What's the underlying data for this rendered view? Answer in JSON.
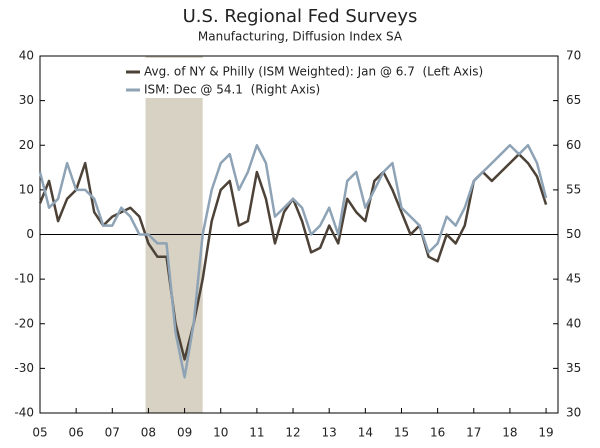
{
  "chart_data": {
    "type": "line",
    "title": "U.S. Regional Fed Surveys",
    "subtitle": "Manufacturing, Diffusion Index SA",
    "x": [
      5.0,
      5.25,
      5.5,
      5.75,
      6.0,
      6.25,
      6.5,
      6.75,
      7.0,
      7.25,
      7.5,
      7.75,
      8.0,
      8.25,
      8.5,
      8.75,
      9.0,
      9.25,
      9.5,
      9.75,
      10.0,
      10.25,
      10.5,
      10.75,
      11.0,
      11.25,
      11.5,
      11.75,
      12.0,
      12.25,
      12.5,
      12.75,
      13.0,
      13.25,
      13.5,
      13.75,
      14.0,
      14.25,
      14.5,
      14.75,
      15.0,
      15.25,
      15.5,
      15.75,
      16.0,
      16.25,
      16.5,
      16.75,
      17.0,
      17.25,
      17.5,
      17.75,
      18.0,
      18.25,
      18.5,
      18.75,
      19.0
    ],
    "series": [
      {
        "name": "Avg. of NY & Philly (ISM Weighted): Jan @ 6.7  (Left Axis)",
        "color": "#4d4237",
        "axis": "y",
        "values": [
          7,
          12,
          3,
          8,
          10,
          16,
          5,
          2,
          4,
          5,
          6,
          4,
          -2,
          -5,
          -5,
          -20,
          -28,
          -20,
          -10,
          3,
          10,
          12,
          2,
          3,
          14,
          8,
          -2,
          5,
          8,
          3,
          -4,
          -3,
          2,
          -2,
          8,
          5,
          3,
          12,
          14,
          10,
          5,
          0,
          2,
          -5,
          -6,
          0,
          -2,
          2,
          12,
          14,
          12,
          14,
          16,
          18,
          16,
          13,
          6.7
        ]
      },
      {
        "name": "ISM: Dec @ 54.1  (Right Axis)",
        "color": "#8ea3b5",
        "axis": "y2",
        "values": [
          57,
          53,
          54,
          58,
          55,
          55,
          54,
          51,
          51,
          53,
          52,
          50,
          50,
          49,
          49,
          39,
          34,
          40,
          50,
          55,
          58,
          59,
          55,
          57,
          60,
          58,
          52,
          53,
          54,
          53,
          50,
          51,
          53,
          50,
          56,
          57,
          53,
          55,
          57,
          58,
          53,
          52,
          51,
          48,
          49,
          52,
          51,
          53,
          56,
          57,
          58,
          59,
          60,
          59,
          60,
          58,
          54.1
        ]
      }
    ],
    "xlim": [
      5,
      19.33
    ],
    "xticks": [
      {
        "value": 5,
        "label": "05"
      },
      {
        "value": 6,
        "label": "06"
      },
      {
        "value": 7,
        "label": "07"
      },
      {
        "value": 8,
        "label": "08"
      },
      {
        "value": 9,
        "label": "09"
      },
      {
        "value": 10,
        "label": "10"
      },
      {
        "value": 11,
        "label": "11"
      },
      {
        "value": 12,
        "label": "12"
      },
      {
        "value": 13,
        "label": "13"
      },
      {
        "value": 14,
        "label": "14"
      },
      {
        "value": 15,
        "label": "15"
      },
      {
        "value": 16,
        "label": "16"
      },
      {
        "value": 17,
        "label": "17"
      },
      {
        "value": 18,
        "label": "18"
      },
      {
        "value": 19,
        "label": "19"
      }
    ],
    "ylim": [
      -40,
      40
    ],
    "yticks": [
      -40,
      -30,
      -20,
      -10,
      0,
      10,
      20,
      30,
      40
    ],
    "y2lim": [
      30,
      70
    ],
    "y2ticks": [
      30,
      35,
      40,
      45,
      50,
      55,
      60,
      65,
      70
    ],
    "recession": {
      "x": [
        7.92,
        9.5
      ],
      "color": "#d8d2c4"
    },
    "hline": 0,
    "grid": false,
    "legend": "top-right"
  }
}
